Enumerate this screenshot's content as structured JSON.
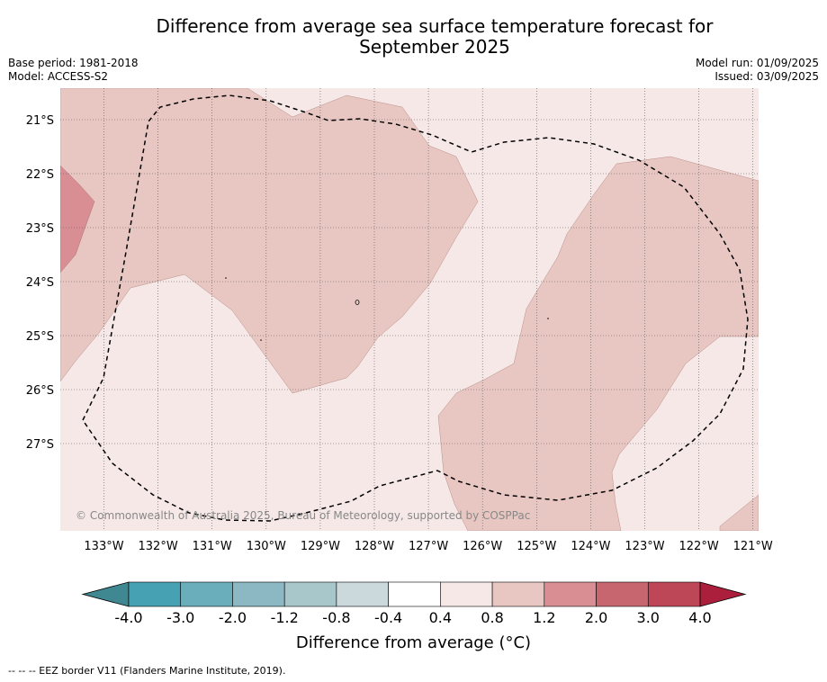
{
  "title": {
    "line1": "Difference from average sea surface temperature forecast for",
    "line2": "September 2025"
  },
  "meta": {
    "base_period": "Base period: 1981-2018",
    "model": "Model: ACCESS-S2",
    "model_run": "Model run: 01/09/2025",
    "issued": "Issued: 03/09/2025"
  },
  "map": {
    "lat_labels": [
      "21°S",
      "22°S",
      "23°S",
      "24°S",
      "25°S",
      "26°S",
      "27°S"
    ],
    "lon_labels": [
      "133°W",
      "132°W",
      "131°W",
      "130°W",
      "129°W",
      "128°W",
      "127°W",
      "126°W",
      "125°W",
      "124°W",
      "123°W",
      "122°W",
      "121°W"
    ],
    "copyright": "© Commonwealth of Australia 2025, Bureau of Meteorology, supported by COSPPac",
    "colors": {
      "band_0.4_0.8": "#f5e8e7",
      "band_0.8_1.2": "#e8c7c2",
      "band_1.2_2.0": "#d88e93"
    }
  },
  "colorbar": {
    "ticks": [
      "-4.0",
      "-3.0",
      "-2.0",
      "-1.2",
      "-0.8",
      "-0.4",
      "0.4",
      "0.8",
      "1.2",
      "2.0",
      "3.0",
      "4.0"
    ],
    "colors": [
      "#3f8892",
      "#46a1b2",
      "#6aaebb",
      "#8bb8c3",
      "#a8c7cb",
      "#cbd9dc",
      "#ffffff",
      "#f5e8e7",
      "#e8c7c2",
      "#d88e93",
      "#c86670",
      "#bd4657",
      "#ab1f3c"
    ],
    "label": "Difference from average (°C)"
  },
  "footnote": "--  --  -- EEZ border V11 (Flanders Marine Institute, 2019)."
}
